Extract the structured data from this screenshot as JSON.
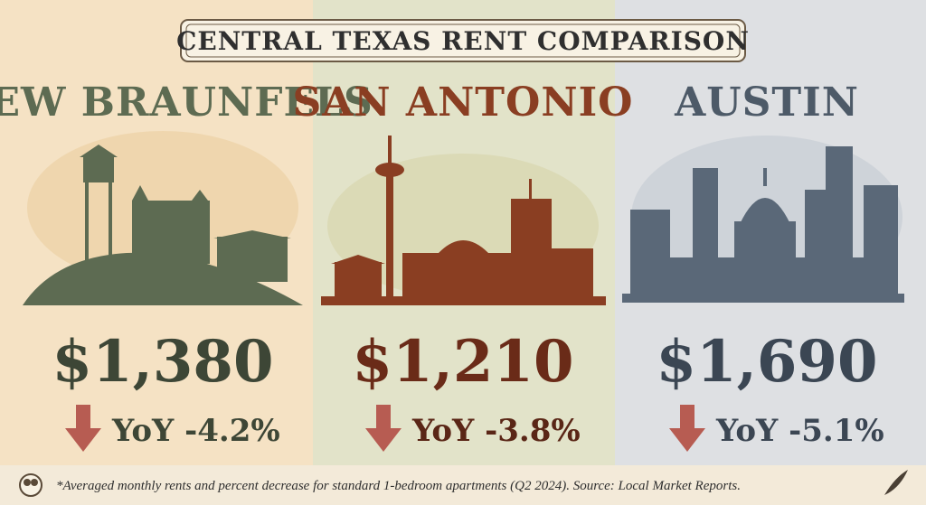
{
  "title": "CENTRAL TEXAS RENT COMPARISON",
  "panels": [
    {
      "city": "NEW BRAUNFELS",
      "rent": "$1,380",
      "change": "YoY -4.2%"
    },
    {
      "city": "SAN ANTONIO",
      "rent": "$1,210",
      "change": "YoY -3.8%"
    },
    {
      "city": "AUSTIN",
      "rent": "$1,690",
      "change": "YoY -5.1%"
    }
  ],
  "footnote": "*Averaged monthly rents and percent decrease for standard 1-bedroom apartments (Q2 2024). Source: Local Market Reports."
}
